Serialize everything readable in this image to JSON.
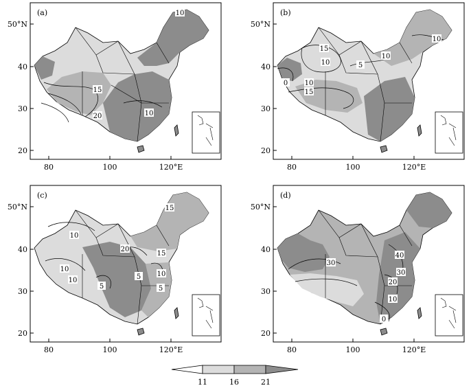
{
  "panels": [
    {
      "label": "(a)",
      "y_ticks": [
        "50°N",
        "40",
        "30",
        "20"
      ],
      "x_ticks": [
        "80",
        "100",
        "120°E"
      ],
      "contour_labels": [
        "10",
        "15",
        "20",
        "10"
      ]
    },
    {
      "label": "(b)",
      "y_ticks": [
        "50°N",
        "40",
        "30",
        "20"
      ],
      "x_ticks": [
        "80",
        "100",
        "120°E"
      ],
      "contour_labels": [
        "10",
        "15",
        "10",
        "5",
        "10",
        "0",
        "10",
        "15"
      ]
    },
    {
      "label": "(c)",
      "y_ticks": [
        "50°N",
        "40",
        "30",
        "20"
      ],
      "x_ticks": [
        "80",
        "100",
        "120°E"
      ],
      "contour_labels": [
        "15",
        "10",
        "20",
        "15",
        "10",
        "10",
        "5",
        "5",
        "10",
        "5"
      ]
    },
    {
      "label": "(d)",
      "y_ticks": [
        "50°N",
        "40",
        "30",
        "20"
      ],
      "x_ticks": [
        "80",
        "100",
        "120°E"
      ],
      "contour_labels": [
        "40",
        "30",
        "30",
        "20",
        "10",
        "0"
      ]
    }
  ],
  "colorbar": {
    "tick_labels": [
      "11",
      "16",
      "21"
    ],
    "colors": [
      "#ffffff",
      "#dcdcdc",
      "#b4b4b4",
      "#8c8c8c"
    ]
  },
  "map_colors": {
    "light": "#dcdcdc",
    "mid": "#b4b4b4",
    "dark": "#8c8c8c",
    "border": "#000000"
  }
}
